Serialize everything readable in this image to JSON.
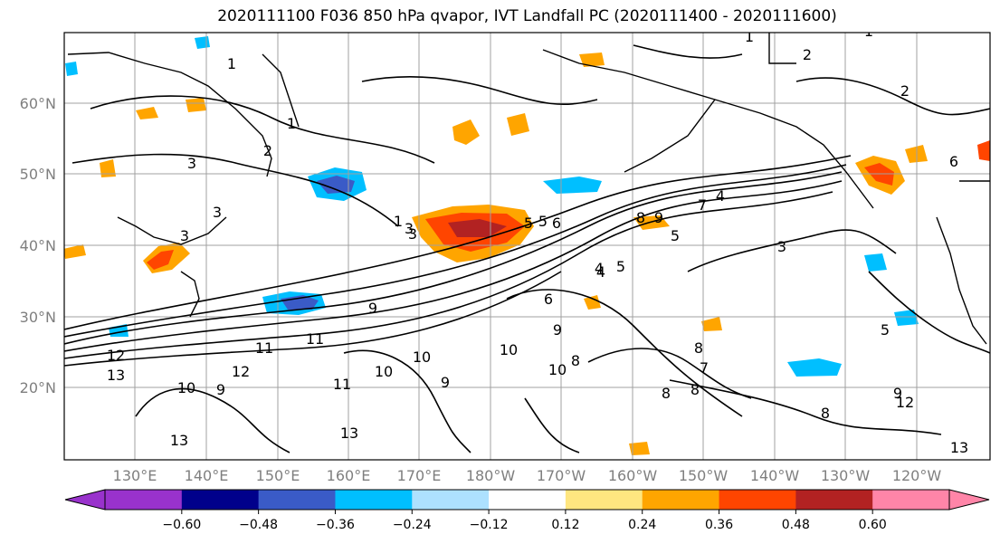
{
  "title": "2020111100 F036 850 hPa qvapor, IVT Landfall PC (2020111400 - 2020111600)",
  "map": {
    "lat_labels": [
      "60°N",
      "50°N",
      "40°N",
      "30°N",
      "20°N"
    ],
    "lon_labels": [
      "130°E",
      "140°E",
      "150°E",
      "160°E",
      "170°E",
      "180°W",
      "170°W",
      "160°W",
      "150°W",
      "140°W",
      "130°W",
      "120°W"
    ],
    "contour_labels": [
      "1",
      "1",
      "2",
      "3",
      "3",
      "1",
      "3",
      "3",
      "5",
      "6",
      "8",
      "9",
      "4",
      "4",
      "5",
      "2",
      "5",
      "7",
      "9",
      "11",
      "13",
      "12",
      "13",
      "10",
      "9",
      "11",
      "13",
      "10",
      "9",
      "10",
      "10",
      "9",
      "8",
      "6",
      "5",
      "8",
      "8",
      "8",
      "8",
      "9",
      "10",
      "11",
      "12",
      "7",
      "3",
      "5",
      "4",
      "1",
      "2",
      "1",
      "6",
      "3",
      "13",
      "12"
    ]
  },
  "colorbar": {
    "ticks": [
      "−0.60",
      "−0.48",
      "−0.36",
      "−0.24",
      "−0.12",
      "0.12",
      "0.24",
      "0.36",
      "0.48",
      "0.60"
    ],
    "colors": [
      "#9932CC",
      "#00008B",
      "#3A5BC7",
      "#00BFFF",
      "#ADE1FF",
      "#FFFFFF",
      "#FFE680",
      "#FFA500",
      "#FF4500",
      "#B22222",
      "#FF85A8"
    ]
  },
  "colors": {
    "axis": "#000000",
    "grid": "#a0a0a0",
    "tick_label": "#7f7f7f",
    "contour": "#000000"
  }
}
